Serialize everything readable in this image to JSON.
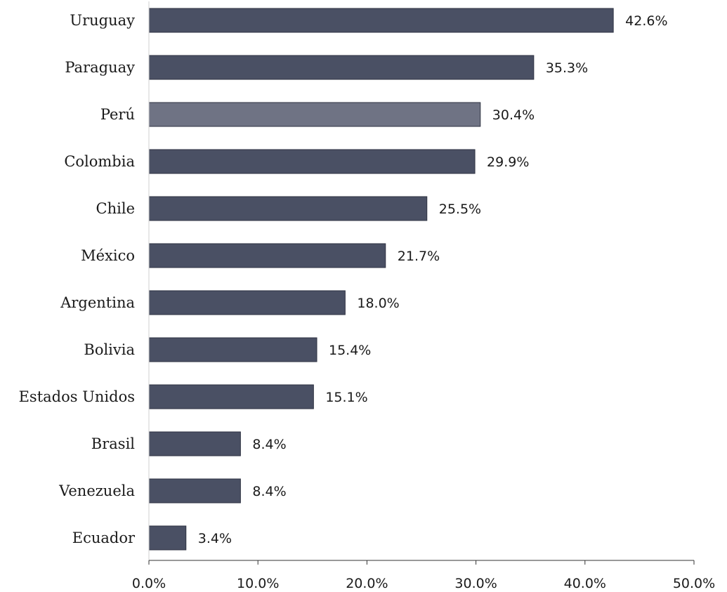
{
  "chart_data": {
    "type": "bar",
    "orientation": "horizontal",
    "categories": [
      "Uruguay",
      "Paraguay",
      "Perú",
      "Colombia",
      "Chile",
      "México",
      "Argentina",
      "Bolivia",
      "Estados Unidos",
      "Brasil",
      "Venezuela",
      "Ecuador"
    ],
    "values": [
      42.6,
      35.3,
      30.4,
      29.9,
      25.5,
      21.7,
      18.0,
      15.4,
      15.1,
      8.4,
      8.4,
      3.4
    ],
    "value_labels": [
      "42.6%",
      "35.3%",
      "30.4%",
      "29.9%",
      "25.5%",
      "21.7%",
      "18.0%",
      "15.4%",
      "15.1%",
      "8.4%",
      "8.4%",
      "3.4%"
    ],
    "x_ticks": [
      0,
      10,
      20,
      30,
      40,
      50
    ],
    "x_tick_labels": [
      "0.0%",
      "10.0%",
      "20.0%",
      "30.0%",
      "40.0%",
      "50.0%"
    ],
    "xlim": [
      0,
      50
    ],
    "title": "",
    "xlabel": "",
    "ylabel": "",
    "grid": false,
    "legend": "none",
    "colors": {
      "bar": "#4a5064",
      "bar_highlight": "#6f7384",
      "highlight_category": "Perú",
      "axis": "#333333"
    }
  }
}
